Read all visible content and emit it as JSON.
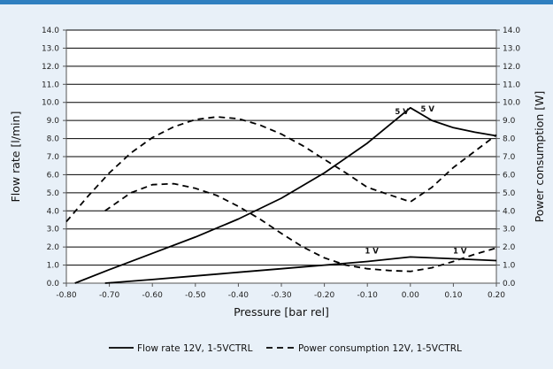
{
  "chart_data": {
    "type": "line",
    "xlabel": "Pressure [bar rel]",
    "ylabel_left": "Flow rate [l/min]",
    "ylabel_right": "Power consumption [W]",
    "xlim": [
      -0.8,
      0.2
    ],
    "ylim_left": [
      0,
      14
    ],
    "ylim_right": [
      0,
      14
    ],
    "x_ticks": [
      "-0.80",
      "-0.70",
      "-0.60",
      "-0.50",
      "-0.40",
      "-0.30",
      "-0.20",
      "-0.10",
      "0.00",
      "0.10",
      "0.20"
    ],
    "y_ticks": [
      "0.0",
      "1.0",
      "2.0",
      "3.0",
      "4.0",
      "5.0",
      "6.0",
      "7.0",
      "8.0",
      "9.0",
      "10.0",
      "11.0",
      "12.0",
      "13.0",
      "14.0"
    ],
    "grid": "horizontal",
    "legend_position": "bottom",
    "series": [
      {
        "name": "Flow rate 12V, 1-5VCTRL",
        "style": "solid",
        "axis": "left",
        "curve_label": "5 V",
        "x": [
          -0.78,
          -0.7,
          -0.6,
          -0.5,
          -0.4,
          -0.3,
          -0.2,
          -0.1,
          0.0,
          0.05,
          0.1,
          0.15,
          0.2
        ],
        "y": [
          0.0,
          0.75,
          1.65,
          2.55,
          3.55,
          4.7,
          6.1,
          7.75,
          9.7,
          9.0,
          8.6,
          8.35,
          8.15
        ]
      },
      {
        "name": "",
        "style": "solid",
        "axis": "left",
        "curve_label": "1 V",
        "x": [
          -0.71,
          -0.6,
          -0.5,
          -0.4,
          -0.3,
          -0.2,
          -0.1,
          0.0,
          0.1,
          0.2
        ],
        "y": [
          0.0,
          0.2,
          0.4,
          0.6,
          0.8,
          1.0,
          1.2,
          1.45,
          1.35,
          1.25
        ]
      },
      {
        "name": "Power consumption 12V, 1-5VCTRL",
        "style": "dashed",
        "axis": "right",
        "curve_label": "5 V",
        "x": [
          -0.8,
          -0.75,
          -0.7,
          -0.65,
          -0.6,
          -0.55,
          -0.5,
          -0.45,
          -0.4,
          -0.35,
          -0.3,
          -0.25,
          -0.2,
          -0.15,
          -0.1,
          -0.05,
          0.0,
          0.05,
          0.1,
          0.15,
          0.2
        ],
        "y": [
          3.4,
          4.8,
          6.1,
          7.2,
          8.05,
          8.65,
          9.05,
          9.2,
          9.1,
          8.75,
          8.25,
          7.6,
          6.85,
          6.1,
          5.3,
          4.9,
          4.5,
          5.3,
          6.4,
          7.3,
          8.2
        ]
      },
      {
        "name": "",
        "style": "dashed",
        "axis": "right",
        "curve_label": "1 V",
        "x": [
          -0.71,
          -0.65,
          -0.6,
          -0.55,
          -0.5,
          -0.45,
          -0.4,
          -0.35,
          -0.3,
          -0.25,
          -0.2,
          -0.15,
          -0.1,
          -0.05,
          0.0,
          0.05,
          0.1,
          0.15,
          0.2
        ],
        "y": [
          4.0,
          5.0,
          5.45,
          5.5,
          5.25,
          4.85,
          4.25,
          3.55,
          2.75,
          2.0,
          1.4,
          1.0,
          0.8,
          0.7,
          0.65,
          0.85,
          1.2,
          1.6,
          1.95
        ]
      }
    ],
    "annotations": [
      {
        "text": "5 V",
        "x": -0.02,
        "y": 9.35
      },
      {
        "text": "5 V",
        "x": 0.04,
        "y": 9.5
      },
      {
        "text": "1 V",
        "x": -0.09,
        "y": 1.65
      },
      {
        "text": "1 V",
        "x": 0.115,
        "y": 1.65
      }
    ]
  }
}
